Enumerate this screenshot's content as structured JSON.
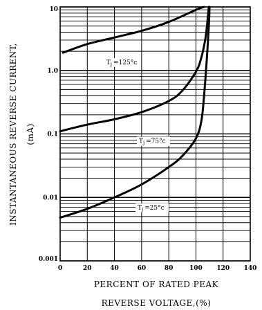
{
  "chart_data": {
    "type": "line",
    "xlabel_line1": "PERCENT OF RATED PEAK",
    "xlabel_line2": "REVERSE VOLTAGE,(%)",
    "ylabel_line1": "INSTANTANEOUS REVERSE CURRENT,",
    "ylabel_line2": "(mA)",
    "x_ticks": [
      "0",
      "20",
      "40",
      "60",
      "80",
      "100",
      "120",
      "140"
    ],
    "x_tick_values": [
      0,
      20,
      40,
      60,
      80,
      100,
      120,
      140
    ],
    "y_ticks": [
      "0.001",
      "0.01",
      "0.1",
      "1.0",
      "10"
    ],
    "y_tick_values": [
      0.001,
      0.01,
      0.1,
      1.0,
      10
    ],
    "xlim": [
      0,
      140
    ],
    "ylim": [
      0.001,
      10
    ],
    "y_scale": "log",
    "grid": true,
    "series": [
      {
        "name": "Tj=125°c",
        "label_main": "T",
        "label_sub": "j",
        "label_rest": "=125°c",
        "label_at": [
          34,
          1.25
        ],
        "points": [
          [
            2,
            1.9
          ],
          [
            20,
            2.6
          ],
          [
            40,
            3.3
          ],
          [
            60,
            4.2
          ],
          [
            80,
            5.8
          ],
          [
            100,
            9.0
          ],
          [
            106,
            10.0
          ]
        ]
      },
      {
        "name": "Tj=75°c",
        "label_main": "T",
        "label_sub": "j",
        "label_rest": "=75°c",
        "label_at": [
          58,
          0.072
        ],
        "points": [
          [
            0,
            0.11
          ],
          [
            20,
            0.14
          ],
          [
            40,
            0.17
          ],
          [
            60,
            0.22
          ],
          [
            80,
            0.33
          ],
          [
            90,
            0.48
          ],
          [
            100,
            0.95
          ],
          [
            104,
            1.6
          ],
          [
            107,
            3.2
          ],
          [
            108.5,
            6.0
          ],
          [
            109.5,
            10.0
          ]
        ]
      },
      {
        "name": "Tj=25°c",
        "label_main": "T",
        "label_sub": "j",
        "label_rest": "=25°c",
        "label_at": [
          57,
          0.0064
        ],
        "points": [
          [
            0,
            0.0048
          ],
          [
            20,
            0.0066
          ],
          [
            40,
            0.01
          ],
          [
            60,
            0.016
          ],
          [
            80,
            0.03
          ],
          [
            90,
            0.045
          ],
          [
            100,
            0.085
          ],
          [
            104,
            0.16
          ],
          [
            106,
            0.4
          ],
          [
            108,
            1.5
          ],
          [
            109.5,
            5.0
          ],
          [
            110,
            10.0
          ]
        ]
      }
    ]
  }
}
